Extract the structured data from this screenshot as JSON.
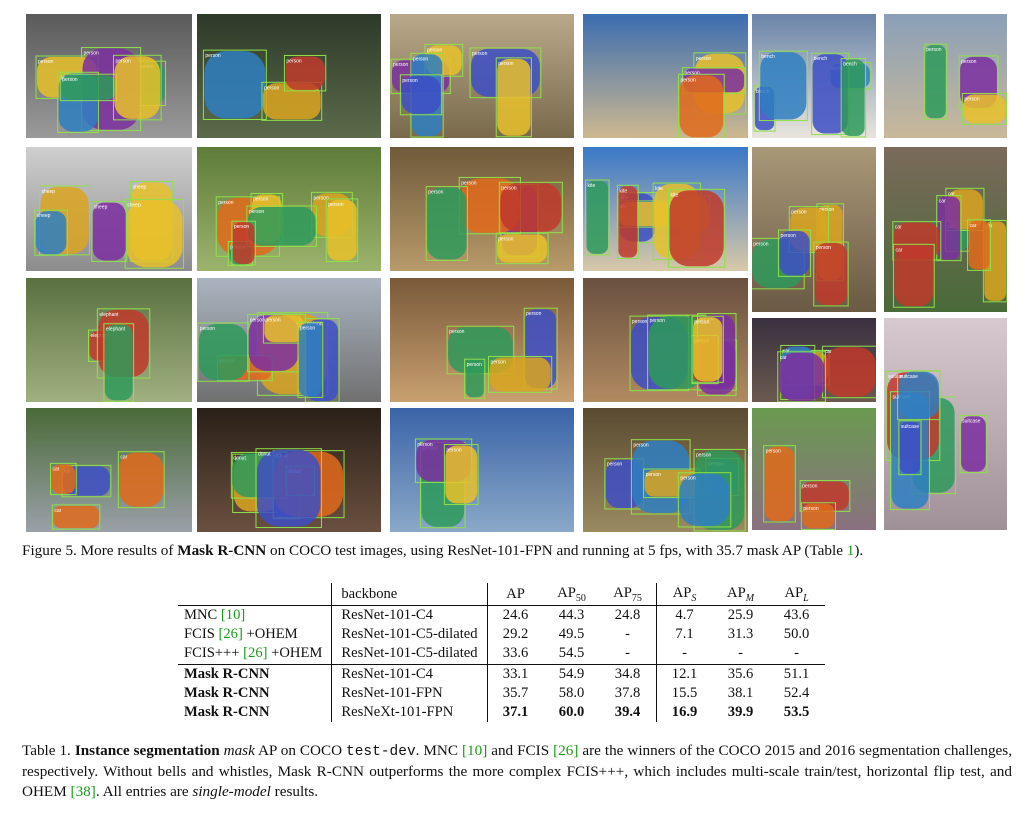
{
  "figure": {
    "caption_prefix": "Figure 5. More results of ",
    "caption_bold": "Mask R-CNN",
    "caption_mid": " on COCO test images, using ResNet-101-FPN and running at 5 fps, with 35.7 mask AP (Table ",
    "caption_ref": "1",
    "caption_suffix": ").",
    "images": [
      {
        "id": "r1c1",
        "label": "person"
      },
      {
        "id": "r1c2",
        "label": "person"
      },
      {
        "id": "r1c3",
        "label": "person"
      },
      {
        "id": "r1c4",
        "label": "person"
      },
      {
        "id": "r1c5",
        "label": "bench"
      },
      {
        "id": "r1c6",
        "label": "person"
      },
      {
        "id": "r2c1",
        "label": "sheep"
      },
      {
        "id": "r2c2",
        "label": "person"
      },
      {
        "id": "r2c3",
        "label": "person"
      },
      {
        "id": "r2c4",
        "label": "kite"
      },
      {
        "id": "r2c5",
        "label": "person"
      },
      {
        "id": "r2c6",
        "label": "car"
      },
      {
        "id": "r3c1",
        "label": "elephant"
      },
      {
        "id": "r3c2",
        "label": "person"
      },
      {
        "id": "r3c3",
        "label": "person"
      },
      {
        "id": "r3c4",
        "label": "person"
      },
      {
        "id": "r3c5",
        "label": "car"
      },
      {
        "id": "r3c6",
        "label": "suitcase"
      },
      {
        "id": "r4c1",
        "label": "car"
      },
      {
        "id": "r4c2",
        "label": "donut"
      },
      {
        "id": "r4c3",
        "label": "person"
      },
      {
        "id": "r4c4",
        "label": "person"
      },
      {
        "id": "r4c5",
        "label": "person"
      },
      {
        "id": "r4c6",
        "label": "suitcase"
      }
    ]
  },
  "table": {
    "header": {
      "method": "",
      "backbone": "backbone",
      "ap": "AP",
      "ap50_base": "AP",
      "ap50_sub": "50",
      "ap75_base": "AP",
      "ap75_sub": "75",
      "aps_base": "AP",
      "aps_sub": "S",
      "apm_base": "AP",
      "apm_sub": "M",
      "apl_base": "AP",
      "apl_sub": "L"
    },
    "rows": [
      {
        "method": "MNC ",
        "cite": "[10]",
        "method_suffix": "",
        "backbone": "ResNet-101-C4",
        "ap": "24.6",
        "ap50": "44.3",
        "ap75": "24.8",
        "aps": "4.7",
        "apm": "25.9",
        "apl": "43.6"
      },
      {
        "method": "FCIS ",
        "cite": "[26]",
        "method_suffix": " +OHEM",
        "backbone": "ResNet-101-C5-dilated",
        "ap": "29.2",
        "ap50": "49.5",
        "ap75": "-",
        "aps": "7.1",
        "apm": "31.3",
        "apl": "50.0"
      },
      {
        "method": "FCIS+++ ",
        "cite": "[26]",
        "method_suffix": " +OHEM",
        "backbone": "ResNet-101-C5-dilated",
        "ap": "33.6",
        "ap50": "54.5",
        "ap75": "-",
        "aps": "-",
        "apm": "-",
        "apl": "-"
      },
      {
        "method": "Mask R-CNN",
        "cite": "",
        "method_suffix": "",
        "backbone": "ResNet-101-C4",
        "ap": "33.1",
        "ap50": "54.9",
        "ap75": "34.8",
        "aps": "12.1",
        "apm": "35.6",
        "apl": "51.1"
      },
      {
        "method": "Mask R-CNN",
        "cite": "",
        "method_suffix": "",
        "backbone": "ResNet-101-FPN",
        "ap": "35.7",
        "ap50": "58.0",
        "ap75": "37.8",
        "aps": "15.5",
        "apm": "38.1",
        "apl": "52.4"
      },
      {
        "method": "Mask R-CNN",
        "cite": "",
        "method_suffix": "",
        "backbone": "ResNeXt-101-FPN",
        "ap": "37.1",
        "ap50": "60.0",
        "ap75": "39.4",
        "aps": "16.9",
        "apm": "39.9",
        "apl": "53.5"
      }
    ],
    "caption": {
      "p1": "Table 1. ",
      "b1": "Instance segmentation",
      "i1": " mask",
      "p2": " AP on COCO ",
      "mono": "test-dev",
      "p3": ". MNC ",
      "c1": "[10]",
      "p4": " and FCIS ",
      "c2": "[26]",
      "p5": " are the winners of the COCO 2015 and 2016 segmentation challenges, respectively. Without bells and whistles, Mask R-CNN outperforms the more complex FCIS+++, which includes multi-scale train/test, horizontal flip test, and OHEM ",
      "c3": "[38]",
      "p6": ". All entries are ",
      "i2": "single-model",
      "p7": " results."
    }
  }
}
